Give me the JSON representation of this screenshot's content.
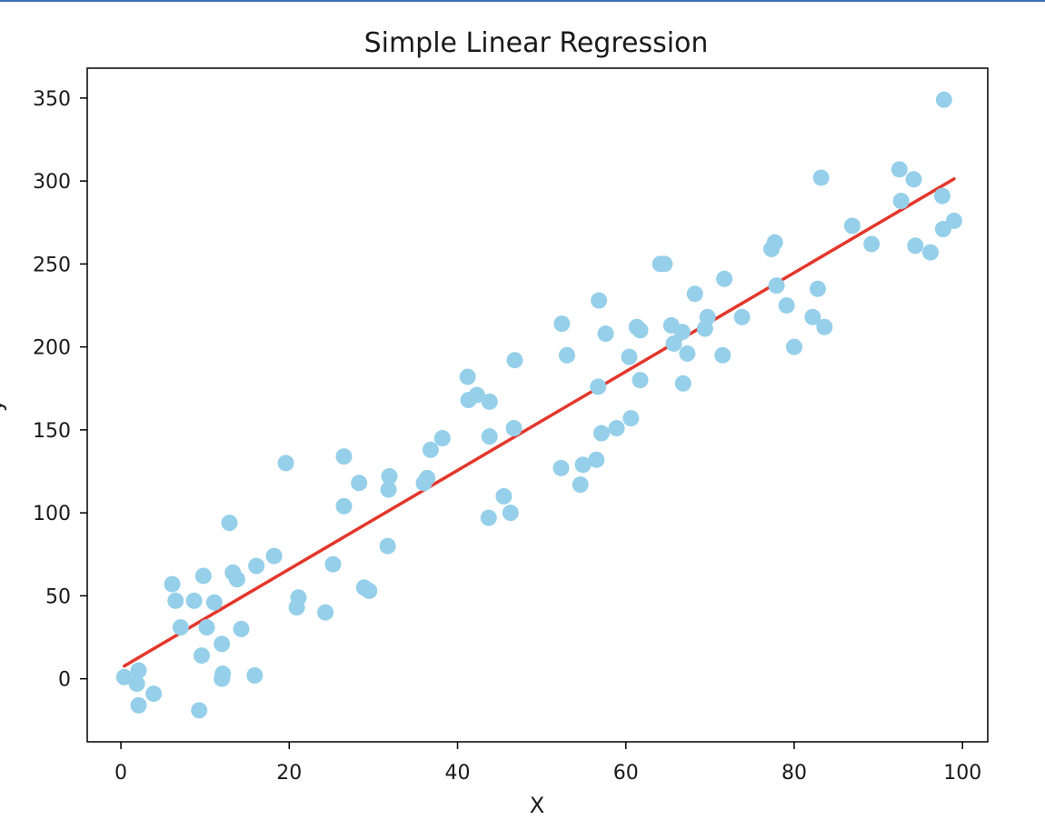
{
  "chart_data": {
    "type": "scatter",
    "title": "Simple Linear Regression",
    "xlabel": "X",
    "ylabel": "y",
    "xlim": [
      -4,
      103
    ],
    "ylim": [
      -38,
      368
    ],
    "x_ticks": [
      0,
      20,
      40,
      60,
      80,
      100
    ],
    "y_ticks": [
      0,
      50,
      100,
      150,
      200,
      250,
      300,
      350
    ],
    "grid": false,
    "legend": "none",
    "colors": {
      "points": "#95cfea",
      "fit_line": "#e3372b",
      "axes": "#000000",
      "top_rule": "#3f6fb6"
    },
    "series": [
      {
        "type": "scatter",
        "x": [
          0.4,
          1.9,
          2.1,
          2.1,
          3.9,
          6.1,
          6.5,
          7.1,
          8.7,
          9.3,
          9.6,
          9.8,
          10.2,
          11.1,
          12.0,
          12.0,
          12.1,
          12.9,
          13.3,
          13.8,
          14.3,
          15.9,
          16.1,
          18.2,
          19.6,
          20.9,
          21.1,
          24.3,
          25.2,
          26.5,
          26.5,
          28.3,
          28.9,
          29.5,
          31.7,
          31.8,
          31.9,
          36.0,
          36.4,
          36.8,
          38.2,
          41.2,
          41.3,
          42.3,
          43.7,
          43.8,
          43.8,
          45.5,
          46.3,
          46.7,
          46.8,
          52.3,
          52.4,
          53.0,
          54.6,
          54.9,
          56.5,
          56.7,
          56.8,
          57.1,
          57.6,
          58.9,
          60.4,
          60.6,
          61.3,
          61.7,
          61.7,
          64.1,
          64.6,
          65.4,
          65.7,
          66.7,
          66.8,
          67.3,
          68.2,
          69.4,
          69.7,
          71.5,
          71.7,
          73.8,
          77.3,
          77.7,
          77.9,
          79.1,
          80.0,
          82.2,
          82.8,
          83.2,
          83.6,
          86.9,
          89.2,
          92.5,
          92.7,
          94.2,
          94.4,
          96.2,
          97.6,
          97.7,
          97.8,
          99.0
        ],
        "y": [
          1,
          -3,
          5,
          -16,
          -9,
          57,
          47,
          31,
          47,
          -19,
          14,
          62,
          31,
          46,
          21,
          0,
          3,
          94,
          64,
          60,
          30,
          2,
          68,
          74,
          130,
          43,
          49,
          40,
          69,
          104,
          134,
          118,
          55,
          53,
          80,
          114,
          122,
          118,
          121,
          138,
          145,
          182,
          168,
          171,
          97,
          167,
          146,
          110,
          100,
          151,
          192,
          127,
          214,
          195,
          117,
          129,
          132,
          176,
          228,
          148,
          208,
          151,
          194,
          157,
          212,
          180,
          210,
          250,
          250,
          213,
          202,
          209,
          178,
          196,
          232,
          211,
          218,
          195,
          241,
          218,
          259,
          263,
          237,
          225,
          200,
          218,
          235,
          302,
          212,
          273,
          262,
          307,
          288,
          301,
          261,
          257,
          291,
          271,
          349,
          276
        ]
      },
      {
        "type": "line",
        "x": [
          0.4,
          99.0
        ],
        "y": [
          7.7,
          301.3
        ]
      }
    ]
  }
}
